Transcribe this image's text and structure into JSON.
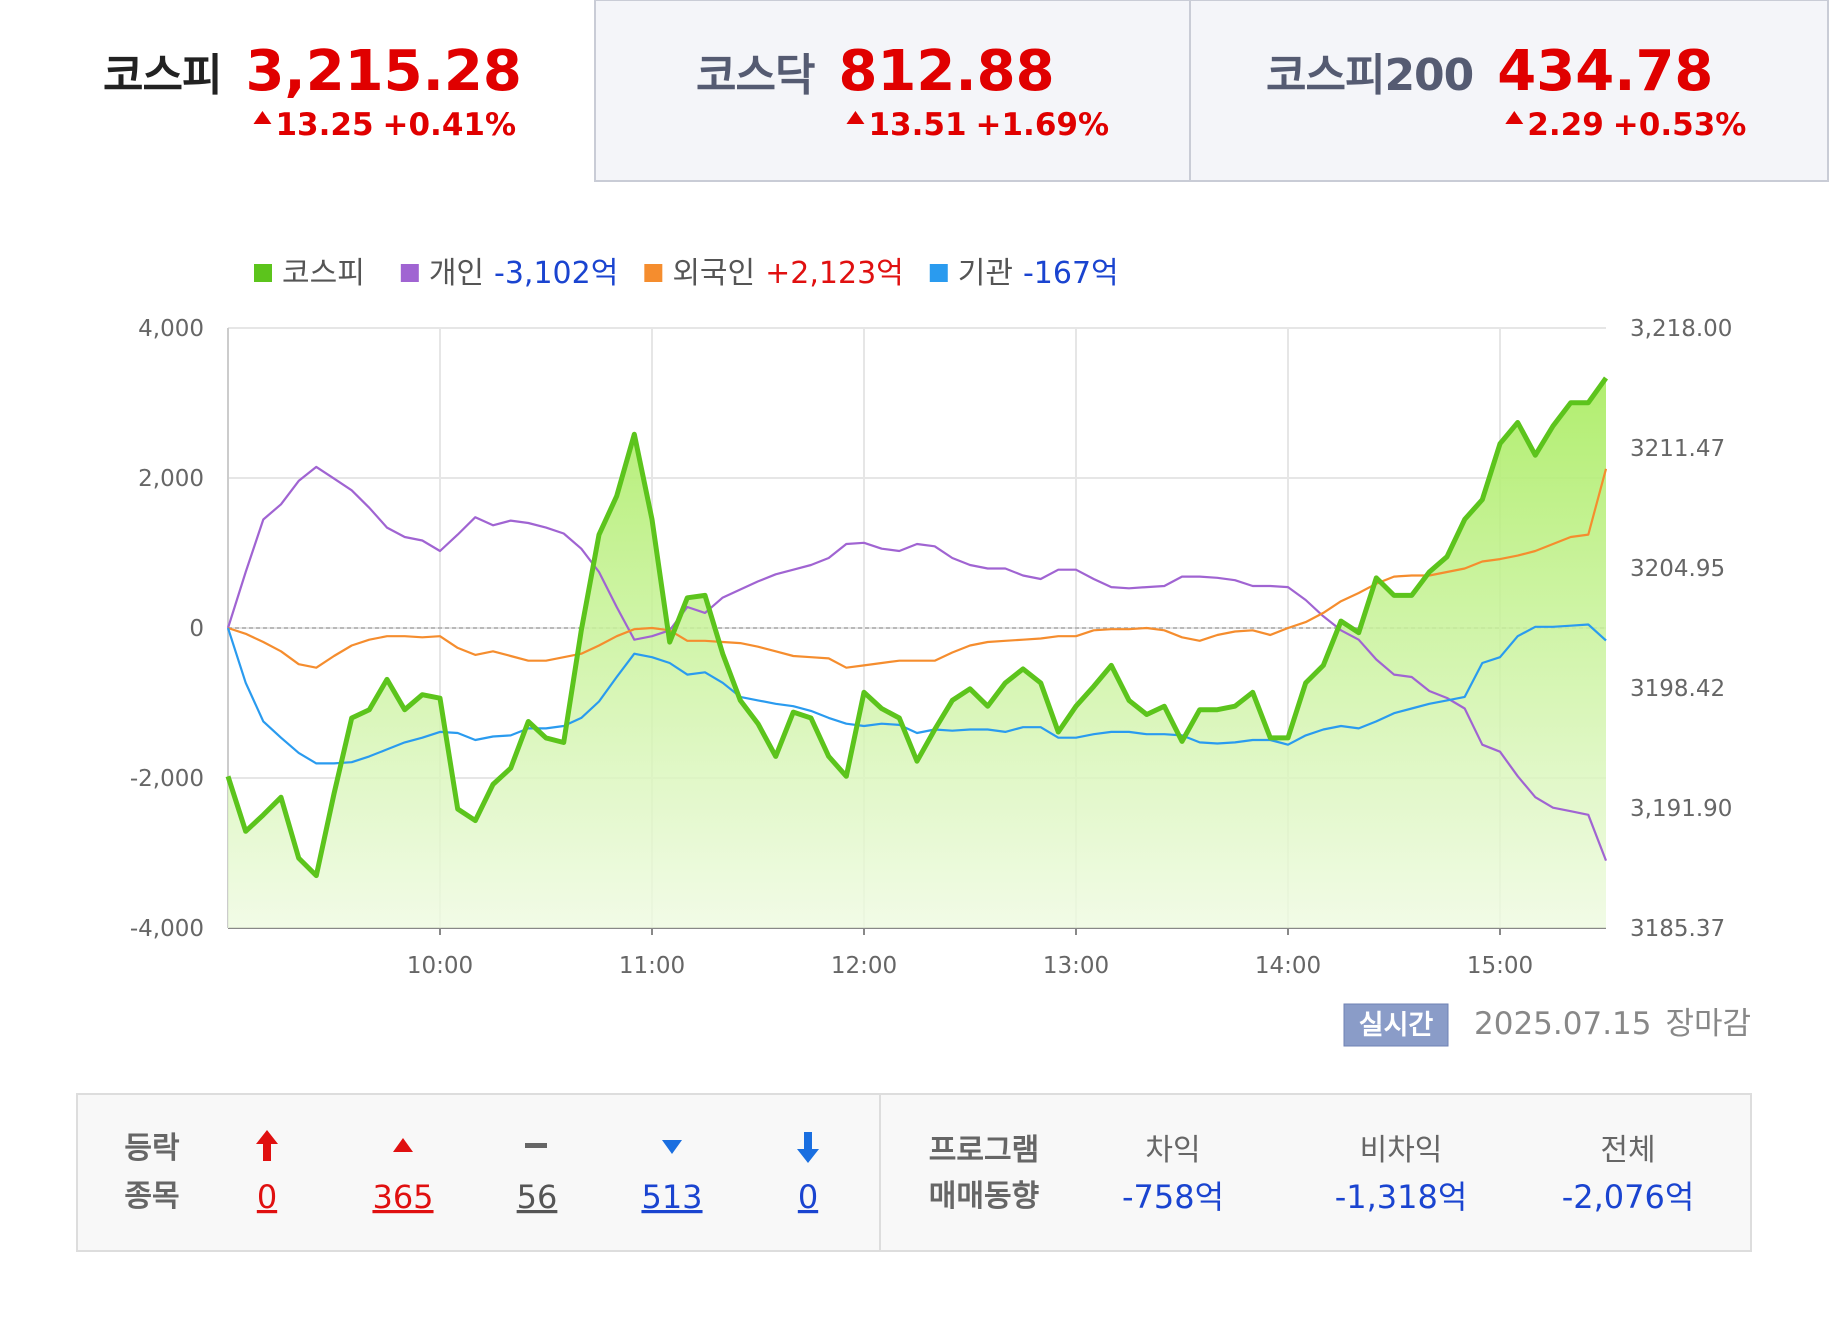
{
  "tabs": [
    {
      "name": "코스피",
      "value": "3,215.28",
      "change": "13.25",
      "pct": "+0.41%"
    },
    {
      "name": "코스닥",
      "value": "812.88",
      "change": "13.51",
      "pct": "+1.69%"
    },
    {
      "name": "코스피200",
      "value": "434.78",
      "change": "2.29",
      "pct": "+0.53%"
    }
  ],
  "chart_data": {
    "type": "line",
    "x": [
      540,
      545,
      550,
      555,
      560,
      565,
      570,
      575,
      580,
      585,
      590,
      595,
      600,
      605,
      610,
      615,
      620,
      625,
      630,
      635,
      640,
      645,
      650,
      655,
      660,
      665,
      670,
      675,
      680,
      685,
      690,
      695,
      700,
      705,
      710,
      715,
      720,
      725,
      730,
      735,
      740,
      745,
      750,
      755,
      760,
      765,
      770,
      775,
      780,
      785,
      790,
      795,
      800,
      805,
      810,
      815,
      820,
      825,
      830,
      835,
      840,
      845,
      850,
      855,
      860,
      865,
      870,
      875,
      880,
      885,
      890,
      895,
      900,
      905,
      910,
      915,
      920,
      925,
      930
    ],
    "xlim": [
      540,
      930
    ],
    "xticks": [
      {
        "value": 600,
        "label": "10:00"
      },
      {
        "value": 660,
        "label": "11:00"
      },
      {
        "value": 720,
        "label": "12:00"
      },
      {
        "value": 780,
        "label": "13:00"
      },
      {
        "value": 840,
        "label": "14:00"
      },
      {
        "value": 900,
        "label": "15:00"
      }
    ],
    "ylim": [
      -4000,
      4000
    ],
    "yticks": [
      {
        "value": 4000,
        "label": "4,000"
      },
      {
        "value": 2000,
        "label": "2,000"
      },
      0,
      {
        "value": -2000,
        "label": "-2,000"
      },
      {
        "value": -4000,
        "label": "-4,000"
      }
    ],
    "y2lim": [
      3185.37,
      3218.0
    ],
    "y2ticks": [
      {
        "value": 3218.0,
        "label": "3,218.00"
      },
      3211.47,
      3204.95,
      3198.42,
      {
        "value": 3191.9,
        "label": "3,191.90"
      },
      3185.37
    ],
    "grid": true,
    "series": [
      {
        "name": "코스피",
        "color": "#5cc41c",
        "axis": "y2",
        "area": true,
        "values": [
          3193.62,
          3190.63,
          3191.52,
          3192.48,
          3189.17,
          3188.22,
          3192.67,
          3196.79,
          3197.24,
          3198.89,
          3197.24,
          3198.06,
          3197.87,
          3191.84,
          3191.21,
          3193.18,
          3194.06,
          3196.6,
          3195.71,
          3195.46,
          3201.56,
          3206.76,
          3208.86,
          3212.22,
          3207.59,
          3200.92,
          3203.33,
          3203.46,
          3200.29,
          3197.75,
          3196.48,
          3194.7,
          3197.11,
          3196.79,
          3194.7,
          3193.62,
          3198.19,
          3197.3,
          3196.79,
          3194.44,
          3196.16,
          3197.75,
          3198.38,
          3197.43,
          3198.7,
          3199.46,
          3198.7,
          3196.03,
          3197.43,
          3198.51,
          3199.65,
          3197.75,
          3196.98,
          3197.43,
          3195.52,
          3197.24,
          3197.24,
          3197.43,
          3198.19,
          3195.71,
          3195.71,
          3198.7,
          3199.65,
          3202.06,
          3201.43,
          3204.41,
          3203.46,
          3203.46,
          3204.73,
          3205.56,
          3207.59,
          3208.67,
          3211.71,
          3212.86,
          3211.08,
          3212.67,
          3213.94,
          3213.94,
          3215.28
        ]
      },
      {
        "name": "개인",
        "color": "#a064d2",
        "legend_value": "-3,102억",
        "legend_value_color": "#1a44d0",
        "values": [
          0,
          747,
          1447,
          1650,
          1961,
          2148,
          1992,
          1836,
          1603,
          1338,
          1214,
          1167,
          1027,
          1245,
          1478,
          1369,
          1432,
          1400,
          1338,
          1260,
          1058,
          747,
          280,
          -156,
          -109,
          -31,
          280,
          202,
          405,
          513,
          622,
          716,
          778,
          840,
          934,
          1120,
          1136,
          1058,
          1027,
          1120,
          1089,
          934,
          840,
          794,
          794,
          700,
          653,
          778,
          778,
          653,
          545,
          529,
          545,
          560,
          685,
          685,
          669,
          638,
          560,
          560,
          545,
          373,
          156,
          -31,
          -156,
          -420,
          -622,
          -654,
          -840,
          -934,
          -1074,
          -1556,
          -1649,
          -1976,
          -2256,
          -2396,
          -2443,
          -2490,
          -3102
        ]
      },
      {
        "name": "외국인",
        "color": "#f58d2e",
        "legend_value": "+2,123억",
        "legend_value_color": "#e01010",
        "values": [
          0,
          -78,
          -187,
          -311,
          -482,
          -529,
          -373,
          -233,
          -156,
          -109,
          -109,
          -124,
          -109,
          -265,
          -358,
          -311,
          -373,
          -436,
          -436,
          -389,
          -342,
          -233,
          -109,
          -16,
          0,
          -31,
          -171,
          -171,
          -187,
          -202,
          -249,
          -311,
          -373,
          -389,
          -405,
          -529,
          -498,
          -467,
          -436,
          -436,
          -436,
          -327,
          -233,
          -187,
          -171,
          -156,
          -140,
          -109,
          -109,
          -31,
          -16,
          -16,
          0,
          -31,
          -124,
          -171,
          -93,
          -47,
          -31,
          -93,
          0,
          78,
          202,
          358,
          467,
          591,
          685,
          700,
          700,
          747,
          794,
          887,
          918,
          965,
          1027,
          1120,
          1214,
          1245,
          2123
        ]
      },
      {
        "name": "기관",
        "color": "#2a9bef",
        "legend_value": "-167억",
        "legend_value_color": "#1a44d0",
        "values": [
          0,
          -731,
          -1245,
          -1463,
          -1665,
          -1805,
          -1805,
          -1789,
          -1712,
          -1618,
          -1525,
          -1463,
          -1385,
          -1400,
          -1494,
          -1447,
          -1432,
          -1338,
          -1338,
          -1307,
          -1198,
          -980,
          -654,
          -342,
          -389,
          -467,
          -622,
          -591,
          -731,
          -918,
          -965,
          -1011,
          -1043,
          -1105,
          -1198,
          -1276,
          -1307,
          -1276,
          -1292,
          -1400,
          -1354,
          -1369,
          -1354,
          -1354,
          -1385,
          -1323,
          -1323,
          -1463,
          -1463,
          -1416,
          -1385,
          -1385,
          -1416,
          -1416,
          -1432,
          -1525,
          -1540,
          -1525,
          -1494,
          -1494,
          -1556,
          -1432,
          -1354,
          -1307,
          -1338,
          -1245,
          -1136,
          -1074,
          -1011,
          -965,
          -918,
          -467,
          -389,
          -109,
          16,
          16,
          31,
          47,
          -167
        ]
      }
    ]
  },
  "status": {
    "badge": "실시간",
    "date": "2025.07.15",
    "state": "장마감"
  },
  "breadth": {
    "label": [
      "등락",
      "종목"
    ],
    "counts": [
      0,
      365,
      56,
      513,
      0
    ]
  },
  "program": {
    "label": [
      "프로그램",
      "매매동향"
    ],
    "columns": [
      {
        "name": "차익",
        "value": "-758억"
      },
      {
        "name": "비차익",
        "value": "-1,318억"
      },
      {
        "name": "전체",
        "value": "-2,076억"
      }
    ]
  }
}
